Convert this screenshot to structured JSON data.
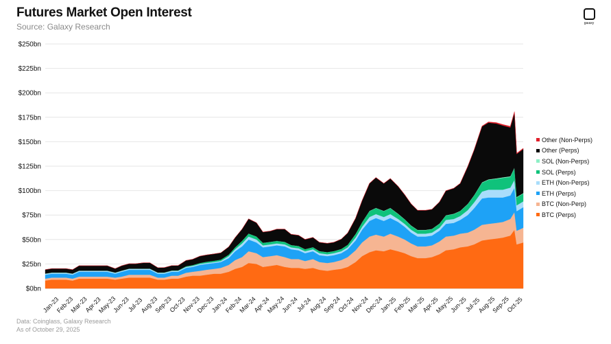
{
  "header": {
    "title": "Futures Market Open Interest",
    "subtitle": "Source: Galaxy Research"
  },
  "logo": {
    "label": "galaxy"
  },
  "footnotes": {
    "data": "Data: Coinglass, Galaxy Research",
    "date": "As of October 29, 2025"
  },
  "chart_data": {
    "type": "area",
    "stacked": true,
    "title": "Futures Market Open Interest",
    "subtitle": "Source: Galaxy Research",
    "unit": "$bn",
    "ylim": [
      0,
      250
    ],
    "yticks": [
      "$0bn",
      "$25bn",
      "$50bn",
      "$75bn",
      "$100bn",
      "$125bn",
      "$150bn",
      "$175bn",
      "$200bn",
      "$225bn",
      "$250bn"
    ],
    "xlabels": [
      "Jan-23",
      "Feb-23",
      "Mar-23",
      "Apr-23",
      "May-23",
      "Jun-23",
      "Jul-23",
      "Aug-23",
      "Sep-23",
      "Oct-23",
      "Nov-23",
      "Dec-23",
      "Jan-24",
      "Feb-24",
      "Mar-24",
      "Apr-24",
      "May-24",
      "Jun-24",
      "Jul-24",
      "Aug-24",
      "Sep-24",
      "Oct-24",
      "Nov-24",
      "Dec-24",
      "Jan-25",
      "Feb-25",
      "Mar-25",
      "Apr-25",
      "May-25",
      "Jun-25",
      "Jul-25",
      "Aug-25",
      "Sep-25",
      "Oct-25"
    ],
    "grid": true,
    "legend_position": "right",
    "x": [
      "2023-01-01",
      "2023-01-15",
      "2023-02-01",
      "2023-02-15",
      "2023-03-01",
      "2023-03-15",
      "2023-04-01",
      "2023-04-15",
      "2023-05-01",
      "2023-05-15",
      "2023-06-01",
      "2023-06-15",
      "2023-07-01",
      "2023-07-15",
      "2023-08-01",
      "2023-08-15",
      "2023-09-01",
      "2023-09-15",
      "2023-10-01",
      "2023-10-15",
      "2023-11-01",
      "2023-11-15",
      "2023-12-01",
      "2023-12-15",
      "2024-01-01",
      "2024-01-15",
      "2024-02-01",
      "2024-02-15",
      "2024-03-01",
      "2024-03-15",
      "2024-04-01",
      "2024-04-15",
      "2024-05-01",
      "2024-05-15",
      "2024-06-01",
      "2024-06-15",
      "2024-07-01",
      "2024-07-15",
      "2024-08-01",
      "2024-08-15",
      "2024-09-01",
      "2024-09-15",
      "2024-10-01",
      "2024-10-15",
      "2024-11-01",
      "2024-11-15",
      "2024-12-01",
      "2024-12-15",
      "2025-01-01",
      "2025-01-15",
      "2025-02-01",
      "2025-02-15",
      "2025-03-01",
      "2025-03-15",
      "2025-04-01",
      "2025-04-15",
      "2025-05-01",
      "2025-05-15",
      "2025-06-01",
      "2025-06-15",
      "2025-07-01",
      "2025-07-15",
      "2025-08-01",
      "2025-08-15",
      "2025-09-01",
      "2025-09-15",
      "2025-10-01",
      "2025-10-10",
      "2025-10-15",
      "2025-10-29"
    ],
    "series": [
      {
        "name": "BTC (Perps)",
        "color": "#ff6a13",
        "values": [
          8,
          9,
          9,
          9,
          8,
          10,
          10,
          10,
          10,
          10,
          9,
          10,
          11,
          11,
          11,
          11,
          9,
          9,
          10,
          10,
          12,
          13,
          13,
          14,
          15,
          15,
          17,
          20,
          22,
          26,
          25,
          22,
          23,
          24,
          22,
          21,
          21,
          20,
          21,
          19,
          18,
          19,
          20,
          22,
          27,
          33,
          37,
          39,
          38,
          40,
          38,
          36,
          33,
          31,
          31,
          32,
          35,
          39,
          40,
          42,
          43,
          45,
          49,
          50,
          51,
          52,
          54,
          60,
          45,
          47
        ]
      },
      {
        "name": "BTC (Non-Perp)",
        "color": "#f6b592",
        "values": [
          2,
          2,
          2,
          2,
          2,
          2,
          2,
          2,
          2,
          2,
          2,
          2,
          3,
          3,
          3,
          3,
          2,
          2,
          3,
          3,
          4,
          4,
          5,
          5,
          5,
          6,
          7,
          9,
          10,
          12,
          11,
          10,
          10,
          10,
          10,
          9,
          9,
          8,
          9,
          8,
          8,
          8,
          9,
          10,
          12,
          14,
          16,
          16,
          15,
          16,
          15,
          14,
          13,
          12,
          12,
          12,
          13,
          14,
          14,
          14,
          14,
          15,
          16,
          16,
          16,
          16,
          17,
          18,
          14,
          15
        ]
      },
      {
        "name": "ETH (Perps)",
        "color": "#1ea2f6",
        "values": [
          4,
          4,
          4,
          4,
          4,
          5,
          5,
          5,
          5,
          5,
          4,
          5,
          5,
          5,
          5,
          5,
          4,
          4,
          4,
          4,
          5,
          5,
          6,
          6,
          6,
          6,
          7,
          9,
          11,
          12,
          11,
          10,
          10,
          10,
          11,
          10,
          9,
          8,
          8,
          7,
          7,
          7,
          7,
          8,
          10,
          13,
          16,
          17,
          16,
          16,
          15,
          13,
          11,
          10,
          10,
          10,
          11,
          13,
          13,
          14,
          18,
          22,
          27,
          27,
          26,
          25,
          24,
          25,
          20,
          21
        ]
      },
      {
        "name": "ETH (Non-Perps)",
        "color": "#a9ddfb",
        "values": [
          1,
          1,
          1,
          1,
          1,
          1,
          1,
          1,
          1,
          1,
          1,
          1,
          1,
          1,
          1,
          1,
          1,
          1,
          1,
          1,
          1,
          1,
          1,
          1,
          1,
          1,
          2,
          2,
          3,
          3,
          3,
          2,
          2,
          2,
          2,
          2,
          2,
          2,
          2,
          2,
          2,
          2,
          2,
          2,
          3,
          3,
          4,
          4,
          4,
          4,
          3,
          3,
          3,
          3,
          3,
          3,
          3,
          4,
          4,
          4,
          5,
          6,
          7,
          8,
          8,
          8,
          8,
          8,
          6,
          6
        ]
      },
      {
        "name": "SOL (Perps)",
        "color": "#0fc27b",
        "values": [
          0.2,
          0.2,
          0.2,
          0.2,
          0.2,
          0.2,
          0.2,
          0.2,
          0.2,
          0.2,
          0.2,
          0.2,
          0.2,
          0.2,
          0.2,
          0.2,
          0.2,
          0.3,
          0.3,
          0.4,
          0.6,
          0.8,
          1,
          1.2,
          1.3,
          1.4,
          1.5,
          2,
          2.5,
          3,
          3,
          2.5,
          2.5,
          2.5,
          2.5,
          2.2,
          2.2,
          2,
          2,
          2,
          2,
          2,
          2.2,
          2.5,
          3.5,
          4.5,
          6,
          6,
          6,
          6,
          5,
          4.5,
          4,
          3.5,
          3.5,
          3.5,
          4,
          4.5,
          5,
          5,
          6,
          7,
          9,
          10,
          11,
          12,
          11,
          12,
          8,
          8
        ]
      },
      {
        "name": "SOL (Non-Perps)",
        "color": "#8ef0c6",
        "values": [
          0,
          0,
          0,
          0,
          0,
          0,
          0,
          0,
          0,
          0,
          0,
          0,
          0,
          0,
          0,
          0,
          0,
          0,
          0,
          0,
          0,
          0,
          0,
          0,
          0,
          0,
          0,
          0,
          0.1,
          0.1,
          0.1,
          0.1,
          0.1,
          0.1,
          0.1,
          0.1,
          0.1,
          0.1,
          0.1,
          0.1,
          0.1,
          0.1,
          0.1,
          0.1,
          0.2,
          0.2,
          0.3,
          0.3,
          0.3,
          0.3,
          0.3,
          0.3,
          0.3,
          0.3,
          0.3,
          0.3,
          0.3,
          0.3,
          0.3,
          0.3,
          0.4,
          0.4,
          0.5,
          0.5,
          0.6,
          0.6,
          0.6,
          0.6,
          0.5,
          0.5
        ]
      },
      {
        "name": "Other (Perps)",
        "color": "#0a0a0a",
        "values": [
          4,
          4,
          4,
          4,
          4,
          5,
          5,
          5,
          5,
          5,
          4,
          5,
          5,
          5,
          6,
          6,
          5,
          5,
          5,
          5,
          6,
          6,
          7,
          7,
          7,
          7,
          8,
          10,
          12,
          15,
          14,
          11,
          11,
          12,
          13,
          11,
          11,
          10,
          10,
          9,
          9,
          9,
          10,
          12,
          16,
          22,
          28,
          31,
          28,
          30,
          28,
          25,
          22,
          20,
          20,
          20,
          22,
          25,
          26,
          28,
          38,
          46,
          57,
          58,
          56,
          53,
          50,
          56,
          44,
          45
        ]
      },
      {
        "name": "Other (Non-Perps)",
        "color": "#e0202b",
        "values": [
          0,
          0,
          0,
          0,
          0,
          0,
          0,
          0,
          0,
          0,
          0,
          0,
          0,
          0,
          0,
          0,
          0,
          0,
          0,
          0,
          0,
          0,
          0,
          0,
          0,
          0,
          0,
          0,
          0.1,
          0.1,
          0.1,
          0.1,
          0.1,
          0.1,
          0.1,
          0.1,
          0.1,
          0.1,
          0.1,
          0.1,
          0.1,
          0.1,
          0.1,
          0.1,
          0.1,
          0.1,
          0.2,
          0.2,
          0.2,
          0.2,
          0.2,
          0.2,
          0.2,
          0.2,
          0.2,
          0.2,
          0.2,
          0.2,
          0.2,
          0.2,
          0.3,
          0.4,
          0.6,
          0.8,
          1,
          1,
          1.2,
          1.2,
          0.8,
          0.8
        ]
      }
    ],
    "legend_order": [
      "Other (Non-Perps)",
      "Other (Perps)",
      "SOL (Non-Perps)",
      "SOL (Perps)",
      "ETH (Non-Perps)",
      "ETH (Perps)",
      "BTC (Non-Perp)",
      "BTC (Perps)"
    ]
  }
}
